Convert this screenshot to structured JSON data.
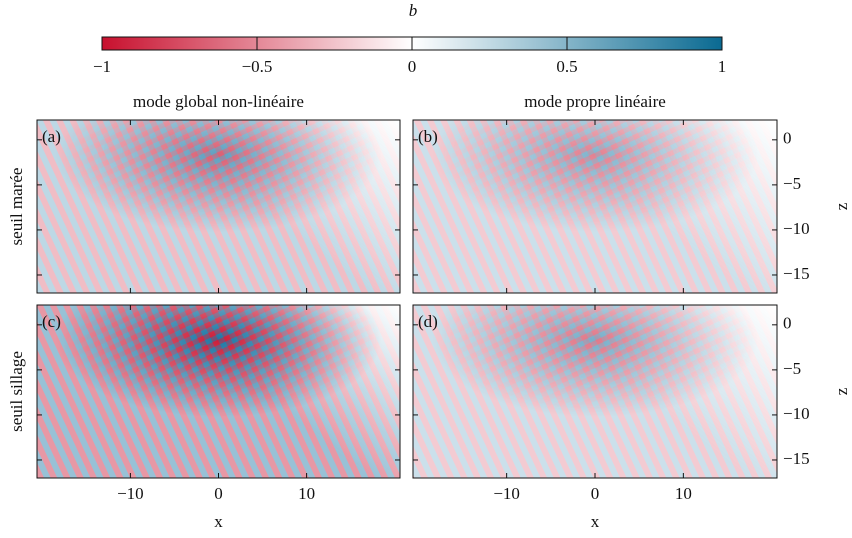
{
  "chart_data": {
    "type": "heatmap",
    "colorbar": {
      "label": "b",
      "lim": [
        -1,
        1
      ],
      "ticks": [
        {
          "value": -1,
          "label": "−1"
        },
        {
          "value": -0.5,
          "label": "−0.5"
        },
        0,
        0.5,
        1
      ]
    },
    "column_titles": [
      "mode global non-linéaire",
      "mode propre linéaire"
    ],
    "row_titles": [
      "seuil marée",
      "seuil sillage"
    ],
    "panels": [
      "(a)",
      "(b)",
      "(c)",
      "(d)"
    ],
    "xlabel": "x",
    "ylabel": "z",
    "xlim": [
      -20.6,
      20.6
    ],
    "xticks": [
      {
        "value": -10,
        "label": "−10"
      },
      0,
      10
    ],
    "ylim": [
      -17,
      2.2
    ],
    "yticks": [
      0,
      {
        "value": -5,
        "label": "−5"
      },
      {
        "value": -10,
        "label": "−10"
      },
      {
        "value": -15,
        "label": "−15"
      }
    ]
  }
}
